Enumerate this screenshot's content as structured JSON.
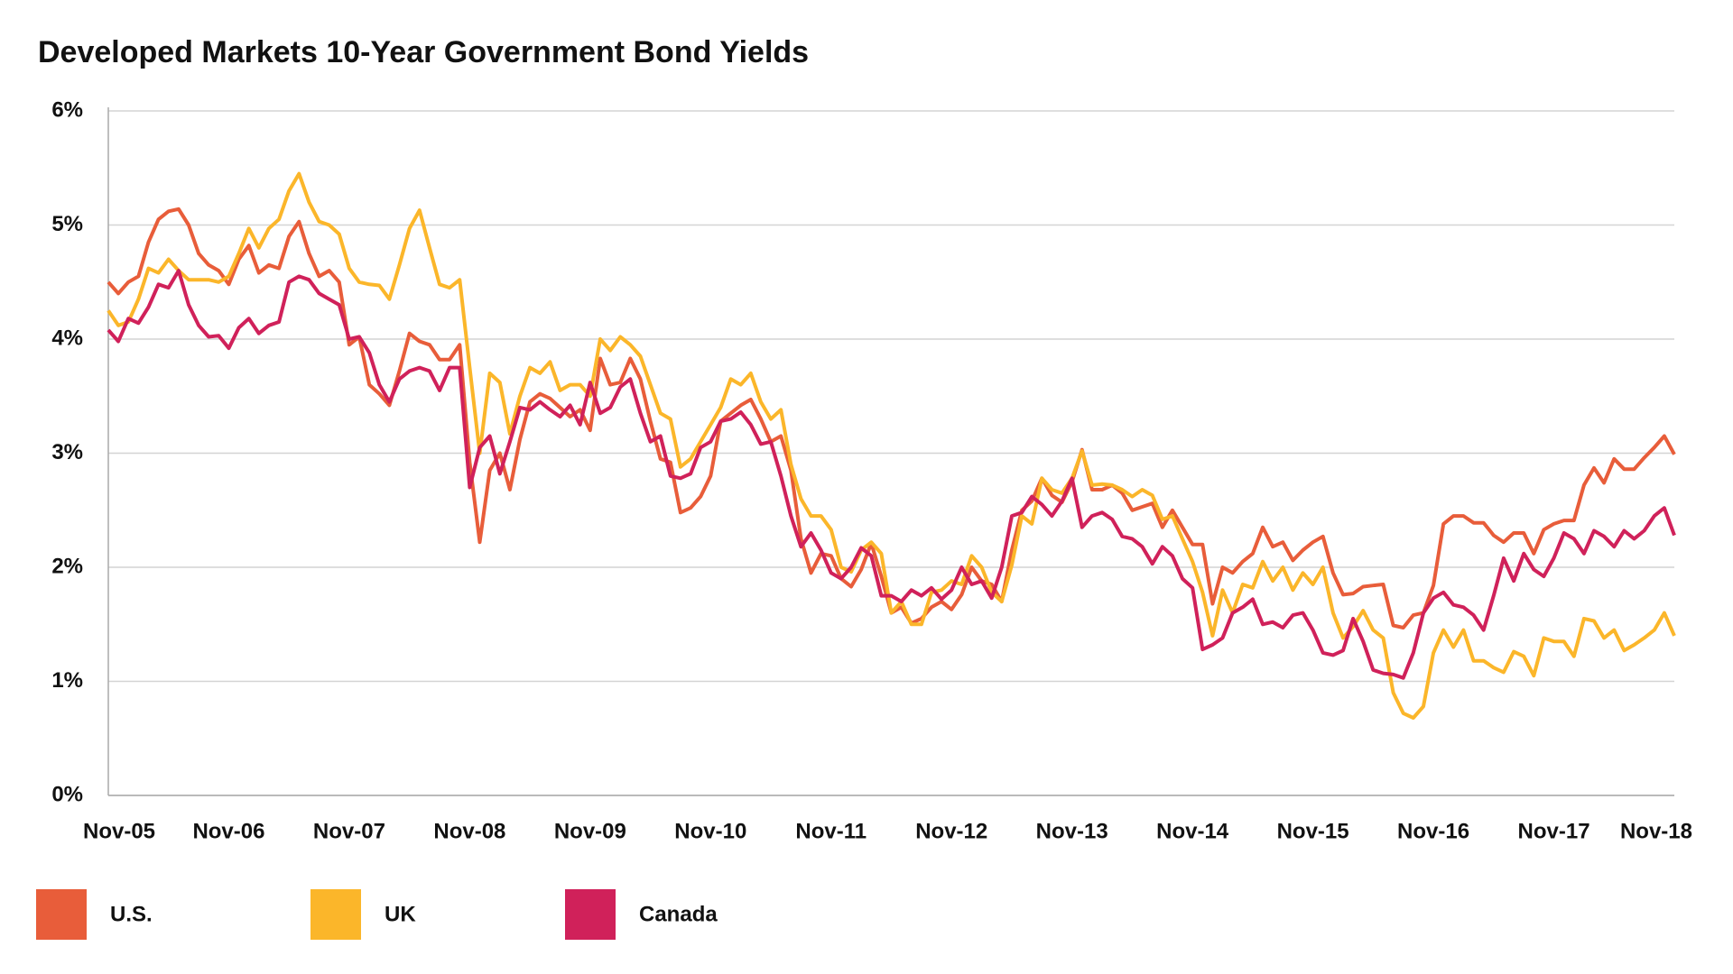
{
  "chart_data": {
    "type": "line",
    "title": "Developed Markets 10-Year Government Bond Yields",
    "categories": [
      "Nov-05",
      null,
      null,
      null,
      null,
      null,
      null,
      null,
      null,
      null,
      null,
      null,
      "Nov-06",
      null,
      null,
      null,
      null,
      null,
      null,
      null,
      null,
      null,
      null,
      null,
      "Nov-07",
      null,
      null,
      null,
      null,
      null,
      null,
      null,
      null,
      null,
      null,
      null,
      "Nov-08",
      null,
      null,
      null,
      null,
      null,
      null,
      null,
      null,
      null,
      null,
      null,
      "Nov-09",
      null,
      null,
      null,
      null,
      null,
      null,
      null,
      null,
      null,
      null,
      null,
      "Nov-10",
      null,
      null,
      null,
      null,
      null,
      null,
      null,
      null,
      null,
      null,
      null,
      "Nov-11",
      null,
      null,
      null,
      null,
      null,
      null,
      null,
      null,
      null,
      null,
      null,
      "Nov-12",
      null,
      null,
      null,
      null,
      null,
      null,
      null,
      null,
      null,
      null,
      null,
      "Nov-13",
      null,
      null,
      null,
      null,
      null,
      null,
      null,
      null,
      null,
      null,
      null,
      "Nov-14",
      null,
      null,
      null,
      null,
      null,
      null,
      null,
      null,
      null,
      null,
      null,
      "Nov-15",
      null,
      null,
      null,
      null,
      null,
      null,
      null,
      null,
      null,
      null,
      null,
      "Nov-16",
      null,
      null,
      null,
      null,
      null,
      null,
      null,
      null,
      null,
      null,
      null,
      "Nov-17",
      null,
      null,
      null,
      null,
      null,
      null,
      null,
      null,
      null,
      null,
      null,
      "Nov-18"
    ],
    "series": [
      {
        "name": "U.S.",
        "color": "#e85d3a",
        "values": [
          4.5,
          4.4,
          4.5,
          4.55,
          4.85,
          5.05,
          5.12,
          5.14,
          5.0,
          4.75,
          4.65,
          4.6,
          4.48,
          4.7,
          4.82,
          4.58,
          4.65,
          4.62,
          4.9,
          5.03,
          4.75,
          4.55,
          4.6,
          4.5,
          3.95,
          4.02,
          3.6,
          3.52,
          3.42,
          3.72,
          4.05,
          3.98,
          3.95,
          3.82,
          3.82,
          3.95,
          2.92,
          2.22,
          2.85,
          3.0,
          2.68,
          3.12,
          3.45,
          3.52,
          3.48,
          3.4,
          3.32,
          3.38,
          3.2,
          3.83,
          3.6,
          3.62,
          3.83,
          3.65,
          3.28,
          2.95,
          2.92,
          2.48,
          2.52,
          2.62,
          2.8,
          3.28,
          3.35,
          3.42,
          3.47,
          3.3,
          3.1,
          3.15,
          2.85,
          2.25,
          1.95,
          2.12,
          2.1,
          1.9,
          1.83,
          1.98,
          2.21,
          1.92,
          1.6,
          1.65,
          1.51,
          1.55,
          1.65,
          1.7,
          1.63,
          1.76,
          2.0,
          1.88,
          1.85,
          1.7,
          2.15,
          2.5,
          2.58,
          2.78,
          2.63,
          2.57,
          2.75,
          3.03,
          2.68,
          2.68,
          2.72,
          2.65,
          2.5,
          2.53,
          2.56,
          2.35,
          2.5,
          2.35,
          2.2,
          2.2,
          1.68,
          2.0,
          1.95,
          2.05,
          2.12,
          2.35,
          2.18,
          2.22,
          2.06,
          2.15,
          2.22,
          2.27,
          1.95,
          1.76,
          1.77,
          1.83,
          1.84,
          1.85,
          1.49,
          1.47,
          1.58,
          1.6,
          1.84,
          2.38,
          2.45,
          2.45,
          2.39,
          2.39,
          2.28,
          2.22,
          2.3,
          2.3,
          2.12,
          2.33,
          2.38,
          2.41,
          2.41,
          2.72,
          2.87,
          2.74,
          2.95,
          2.86,
          2.86,
          2.96,
          3.05,
          3.15,
          2.99
        ]
      },
      {
        "name": "UK",
        "color": "#fbb62a",
        "values": [
          4.25,
          4.12,
          4.15,
          4.35,
          4.62,
          4.58,
          4.7,
          4.6,
          4.52,
          4.52,
          4.52,
          4.5,
          4.55,
          4.75,
          4.97,
          4.8,
          4.97,
          5.05,
          5.3,
          5.45,
          5.2,
          5.03,
          5.0,
          4.92,
          4.62,
          4.5,
          4.48,
          4.47,
          4.35,
          4.65,
          4.97,
          5.13,
          4.8,
          4.48,
          4.45,
          4.52,
          3.75,
          3.0,
          3.7,
          3.62,
          3.17,
          3.5,
          3.75,
          3.7,
          3.8,
          3.55,
          3.6,
          3.6,
          3.5,
          4.0,
          3.9,
          4.02,
          3.95,
          3.85,
          3.6,
          3.35,
          3.3,
          2.88,
          2.95,
          3.1,
          3.25,
          3.4,
          3.65,
          3.6,
          3.7,
          3.45,
          3.3,
          3.38,
          2.9,
          2.6,
          2.45,
          2.45,
          2.33,
          2.0,
          1.96,
          2.15,
          2.22,
          2.12,
          1.6,
          1.7,
          1.5,
          1.5,
          1.78,
          1.8,
          1.88,
          1.85,
          2.1,
          2.0,
          1.78,
          1.7,
          2.02,
          2.45,
          2.38,
          2.78,
          2.68,
          2.65,
          2.78,
          3.02,
          2.72,
          2.73,
          2.72,
          2.68,
          2.62,
          2.68,
          2.63,
          2.42,
          2.45,
          2.25,
          2.05,
          1.78,
          1.4,
          1.8,
          1.6,
          1.85,
          1.82,
          2.05,
          1.88,
          2.0,
          1.8,
          1.95,
          1.85,
          2.0,
          1.6,
          1.38,
          1.48,
          1.62,
          1.45,
          1.38,
          0.9,
          0.72,
          0.68,
          0.78,
          1.25,
          1.45,
          1.3,
          1.45,
          1.18,
          1.18,
          1.12,
          1.08,
          1.26,
          1.22,
          1.05,
          1.38,
          1.35,
          1.35,
          1.22,
          1.55,
          1.53,
          1.38,
          1.45,
          1.27,
          1.32,
          1.38,
          1.45,
          1.6,
          1.4
        ]
      },
      {
        "name": "Canada",
        "color": "#d0215a",
        "values": [
          4.08,
          3.98,
          4.18,
          4.14,
          4.28,
          4.48,
          4.45,
          4.6,
          4.3,
          4.12,
          4.02,
          4.03,
          3.92,
          4.1,
          4.18,
          4.05,
          4.12,
          4.15,
          4.5,
          4.55,
          4.52,
          4.4,
          4.35,
          4.3,
          4.0,
          4.02,
          3.88,
          3.6,
          3.45,
          3.65,
          3.72,
          3.75,
          3.72,
          3.55,
          3.75,
          3.75,
          2.7,
          3.05,
          3.15,
          2.82,
          3.1,
          3.4,
          3.38,
          3.45,
          3.38,
          3.32,
          3.42,
          3.25,
          3.62,
          3.35,
          3.4,
          3.58,
          3.65,
          3.35,
          3.1,
          3.15,
          2.8,
          2.78,
          2.82,
          3.05,
          3.1,
          3.28,
          3.3,
          3.36,
          3.25,
          3.08,
          3.1,
          2.8,
          2.45,
          2.18,
          2.3,
          2.15,
          1.95,
          1.9,
          2.0,
          2.17,
          2.1,
          1.75,
          1.75,
          1.7,
          1.8,
          1.75,
          1.82,
          1.72,
          1.8,
          2.0,
          1.85,
          1.88,
          1.73,
          2.0,
          2.45,
          2.48,
          2.62,
          2.55,
          2.45,
          2.58,
          2.78,
          2.35,
          2.45,
          2.48,
          2.42,
          2.27,
          2.25,
          2.18,
          2.03,
          2.18,
          2.1,
          1.9,
          1.82,
          1.28,
          1.32,
          1.38,
          1.6,
          1.65,
          1.72,
          1.5,
          1.52,
          1.47,
          1.58,
          1.6,
          1.45,
          1.25,
          1.23,
          1.27,
          1.55,
          1.35,
          1.1,
          1.07,
          1.06,
          1.03,
          1.25,
          1.6,
          1.73,
          1.78,
          1.67,
          1.65,
          1.58,
          1.45,
          1.75,
          2.08,
          1.88,
          2.12,
          1.98,
          1.92,
          2.08,
          2.3,
          2.25,
          2.12,
          2.32,
          2.27,
          2.18,
          2.32,
          2.25,
          2.32,
          2.45,
          2.52,
          2.28
        ]
      }
    ],
    "ylim": [
      0,
      6
    ],
    "yticks": [
      {
        "value": 0,
        "label": "0%"
      },
      {
        "value": 1,
        "label": "1%"
      },
      {
        "value": 2,
        "label": "2%"
      },
      {
        "value": 3,
        "label": "3%"
      },
      {
        "value": 4,
        "label": "4%"
      },
      {
        "value": 5,
        "label": "5%"
      },
      {
        "value": 6,
        "label": "6%"
      }
    ],
    "grid": true,
    "legend": "bottom"
  }
}
